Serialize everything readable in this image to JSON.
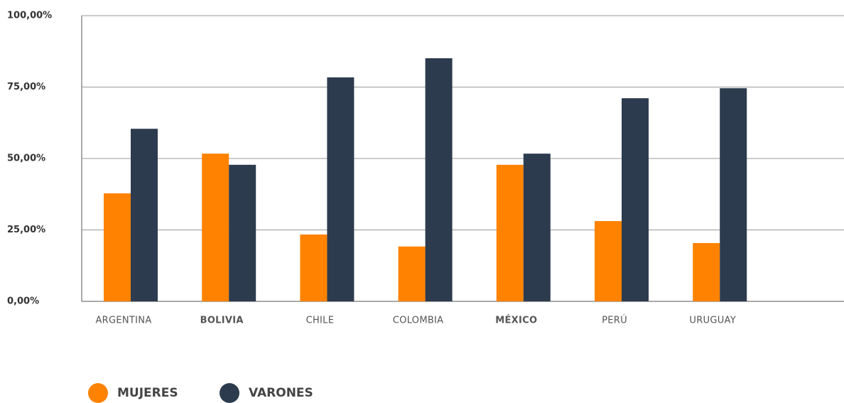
{
  "chart_data": {
    "type": "bar",
    "categories": [
      "ARGENTINA",
      "BOLIVIA",
      "CHILE",
      "COLOMBIA",
      "MÉXICO",
      "PERÚ",
      "URUGUAY"
    ],
    "bold_categories": [
      1,
      4
    ],
    "series": [
      {
        "name": "MUJERES",
        "color": "#ff8200",
        "values": [
          37.8,
          51.7,
          23.4,
          19.2,
          47.8,
          28.1,
          20.4
        ]
      },
      {
        "name": "VARONES",
        "color": "#2d3b4e",
        "values": [
          60.4,
          47.8,
          78.4,
          85.1,
          51.7,
          71.1,
          74.6
        ]
      }
    ],
    "ylim": [
      0,
      100
    ],
    "yticks": [
      {
        "value": 0,
        "label": "0,00%"
      },
      {
        "value": 25,
        "label": "25,00%"
      },
      {
        "value": 50,
        "label": "50,00%"
      },
      {
        "value": 75,
        "label": "75,00%"
      },
      {
        "value": 100,
        "label": "100,00%"
      }
    ],
    "grid": true
  }
}
